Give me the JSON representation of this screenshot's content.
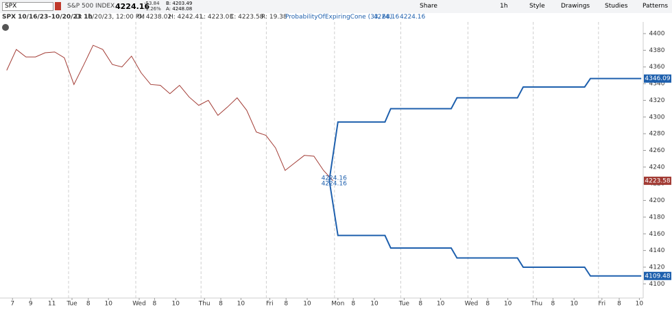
{
  "toolbar": {
    "symbol": "SPX",
    "name": "S&P 500 INDEX",
    "last": "4224.16",
    "change": "-53.84",
    "change_pct": "-1.26%",
    "bid": "B: 4203.49",
    "ask": "A: 4248.08",
    "buttons": [
      "Share",
      "1h",
      "Style",
      "Drawings",
      "Studies",
      "Patterns"
    ]
  },
  "legend": {
    "title": "SPX 10/16/23–10/20/23 1h",
    "items": [
      "D: 10/20/23, 12:00 PM",
      "O: 4238.02",
      "H: 4242.41",
      "L: 4223.03",
      "C: 4223.58",
      "R: 19.38"
    ],
    "study": "ProbabilityOfExpiringCone (33, 68)",
    "study_values": [
      "4224.16",
      "4224.16"
    ]
  },
  "chart_data": {
    "type": "line",
    "xlim": [
      -0.7,
      66.3
    ],
    "xticks": [
      {
        "value": 0.6,
        "label": "7"
      },
      {
        "value": 2.5,
        "label": "9"
      },
      {
        "value": 4.7,
        "label": "11"
      },
      {
        "value": 6.8,
        "label": "Tue"
      },
      {
        "value": 8.5,
        "label": "8"
      },
      {
        "value": 10.6,
        "label": "10"
      },
      {
        "value": 13.8,
        "label": "Wed"
      },
      {
        "value": 15.4,
        "label": "8"
      },
      {
        "value": 17.6,
        "label": "10"
      },
      {
        "value": 20.6,
        "label": "Thu"
      },
      {
        "value": 22.3,
        "label": "8"
      },
      {
        "value": 24.4,
        "label": "10"
      },
      {
        "value": 27.4,
        "label": "Fri"
      },
      {
        "value": 29.1,
        "label": "8"
      },
      {
        "value": 31.3,
        "label": "10"
      },
      {
        "value": 34.5,
        "label": "Mon"
      },
      {
        "value": 36.1,
        "label": "8"
      },
      {
        "value": 38.3,
        "label": "10"
      },
      {
        "value": 41.4,
        "label": "Tue"
      },
      {
        "value": 43.1,
        "label": "8"
      },
      {
        "value": 45.2,
        "label": "10"
      },
      {
        "value": 48.4,
        "label": "Wed"
      },
      {
        "value": 50.1,
        "label": "8"
      },
      {
        "value": 52.2,
        "label": "10"
      },
      {
        "value": 55.2,
        "label": "Thu"
      },
      {
        "value": 56.9,
        "label": "8"
      },
      {
        "value": 59.1,
        "label": "10"
      },
      {
        "value": 62.0,
        "label": "Fri"
      },
      {
        "value": 63.8,
        "label": "8"
      },
      {
        "value": 65.9,
        "label": "10"
      }
    ],
    "ylim": [
      4083,
      4414
    ],
    "yticks": [
      4100,
      4120,
      4140,
      4160,
      4180,
      4200,
      4220,
      4240,
      4260,
      4280,
      4300,
      4320,
      4340,
      4360,
      4380,
      4400
    ],
    "series": [
      {
        "color": "#a23b34",
        "width": 1,
        "x": [
          0,
          1,
          2,
          3,
          4,
          5,
          6,
          7,
          8,
          9,
          10,
          11,
          12,
          13,
          14,
          15,
          16,
          17,
          18,
          19,
          20,
          21,
          22,
          23,
          24,
          25,
          26,
          27,
          28,
          29,
          30,
          31,
          32,
          33,
          34
        ],
        "values": [
          4356,
          4381,
          4372,
          4372,
          4377,
          4378,
          4371,
          4339,
          4362,
          4386,
          4381,
          4363,
          4360,
          4373,
          4353,
          4339,
          4338,
          4328,
          4338,
          4324,
          4314,
          4320,
          4302,
          4312,
          4323,
          4308,
          4282,
          4278,
          4263,
          4236,
          4245,
          4254,
          4253,
          4236,
          4223.58
        ]
      },
      {
        "color": "#1d5fad",
        "width": 2,
        "x": [
          33.6,
          34.5,
          39.4,
          40.0,
          46.3,
          46.9,
          53.2,
          53.8,
          60.2,
          60.8,
          66.1
        ],
        "values": [
          4224.16,
          4294,
          4294,
          4310,
          4310,
          4323,
          4323,
          4336,
          4336,
          4346.09,
          4346.09
        ]
      },
      {
        "color": "#1d5fad",
        "width": 2,
        "x": [
          33.6,
          34.5,
          39.4,
          40.0,
          46.3,
          46.9,
          53.2,
          53.8,
          60.2,
          60.8,
          66.1
        ],
        "values": [
          4224.16,
          4158,
          4158,
          4143,
          4143,
          4131,
          4131,
          4120,
          4120,
          4109.48,
          4109.48
        ]
      }
    ]
  }
}
